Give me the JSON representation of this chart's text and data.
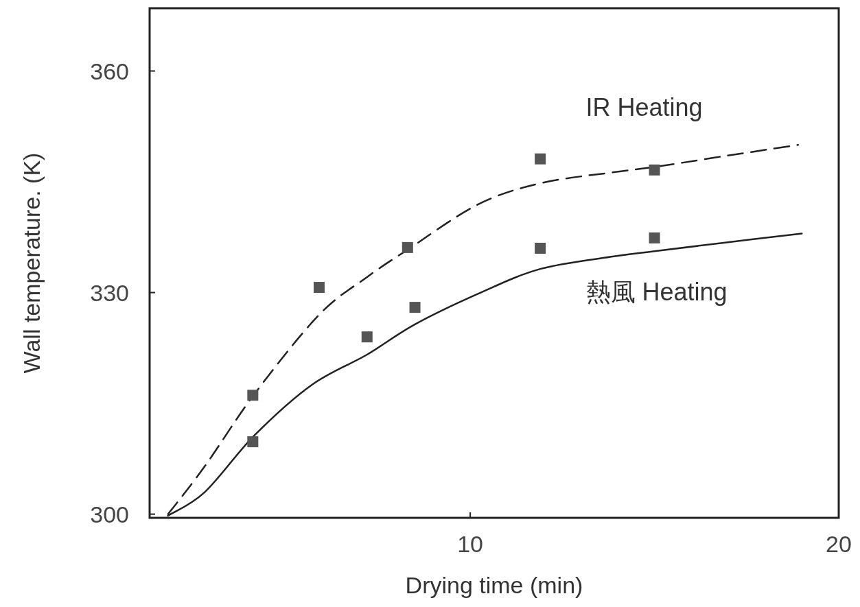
{
  "chart_data": {
    "type": "line",
    "xlabel": "Drying time (min)",
    "ylabel": "Wall temperature. (K)",
    "xlim": [
      1.3,
      20
    ],
    "ylim": [
      299.5,
      368.5
    ],
    "xticks": [
      10,
      20
    ],
    "yticks": [
      300,
      330,
      360
    ],
    "grid": false,
    "series": [
      {
        "name": "IR Heating",
        "line_style": "dashed",
        "color": "#222222",
        "x": [
          1.8,
          2.8,
          4.15,
          5.9,
          7.2,
          8.3,
          10.2,
          11.9,
          13.9,
          15,
          16.8,
          18.9
        ],
        "values": [
          300,
          306.5,
          316.3,
          327,
          332.1,
          335.8,
          341.9,
          344.8,
          346.3,
          347,
          348.4,
          350
        ]
      },
      {
        "name": "熱風 Heating",
        "line_style": "solid",
        "color": "#222222",
        "x": [
          1.8,
          2.8,
          4.15,
          5.7,
          7.2,
          8.5,
          10.2,
          11.9,
          13.9,
          15,
          16.8,
          19
        ],
        "values": [
          299.8,
          303,
          310.7,
          317.5,
          321.6,
          325.7,
          329.8,
          333.2,
          334.9,
          335.6,
          336.7,
          338
        ]
      },
      {
        "type": "scatter",
        "marker": "square",
        "color": "#555555",
        "x": [
          4.1,
          5.9,
          8.3,
          11.9,
          15.0
        ],
        "values": [
          316.1,
          330.7,
          336.1,
          348.1,
          346.6
        ]
      },
      {
        "type": "scatter",
        "marker": "square",
        "color": "#555555",
        "x": [
          4.1,
          7.2,
          8.5,
          11.9,
          15.0
        ],
        "values": [
          309.8,
          324.0,
          328.0,
          336.0,
          337.4
        ]
      }
    ]
  }
}
